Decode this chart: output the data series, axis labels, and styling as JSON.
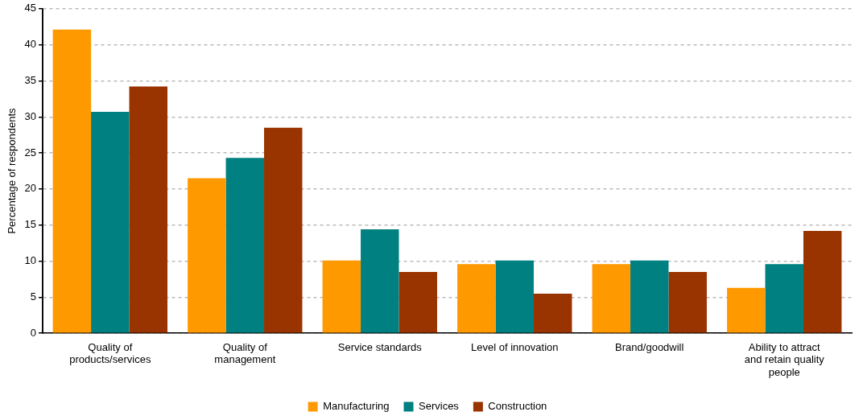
{
  "chart_data": {
    "type": "bar",
    "ylabel": "Percentage of respondents",
    "categories": [
      "Quality of products/services",
      "Quality of management",
      "Service standards",
      "Level of innovation",
      "Brand/goodwill",
      "Ability to attract and retain quality people"
    ],
    "series": [
      {
        "name": "Manufacturing",
        "color": "#ff9900",
        "values": [
          42.1,
          21.5,
          10.1,
          9.6,
          9.6,
          6.3
        ]
      },
      {
        "name": "Services",
        "color": "#008080",
        "values": [
          30.7,
          24.3,
          14.4,
          10.1,
          10.1,
          9.6
        ]
      },
      {
        "name": "Construction",
        "color": "#993300",
        "values": [
          34.2,
          28.5,
          8.5,
          5.5,
          8.5,
          14.2
        ]
      }
    ],
    "ylim": [
      0,
      45
    ],
    "yticks": [
      0,
      5,
      10,
      15,
      20,
      25,
      30,
      35,
      40,
      45
    ],
    "grid": "y",
    "legend": "bottom"
  }
}
